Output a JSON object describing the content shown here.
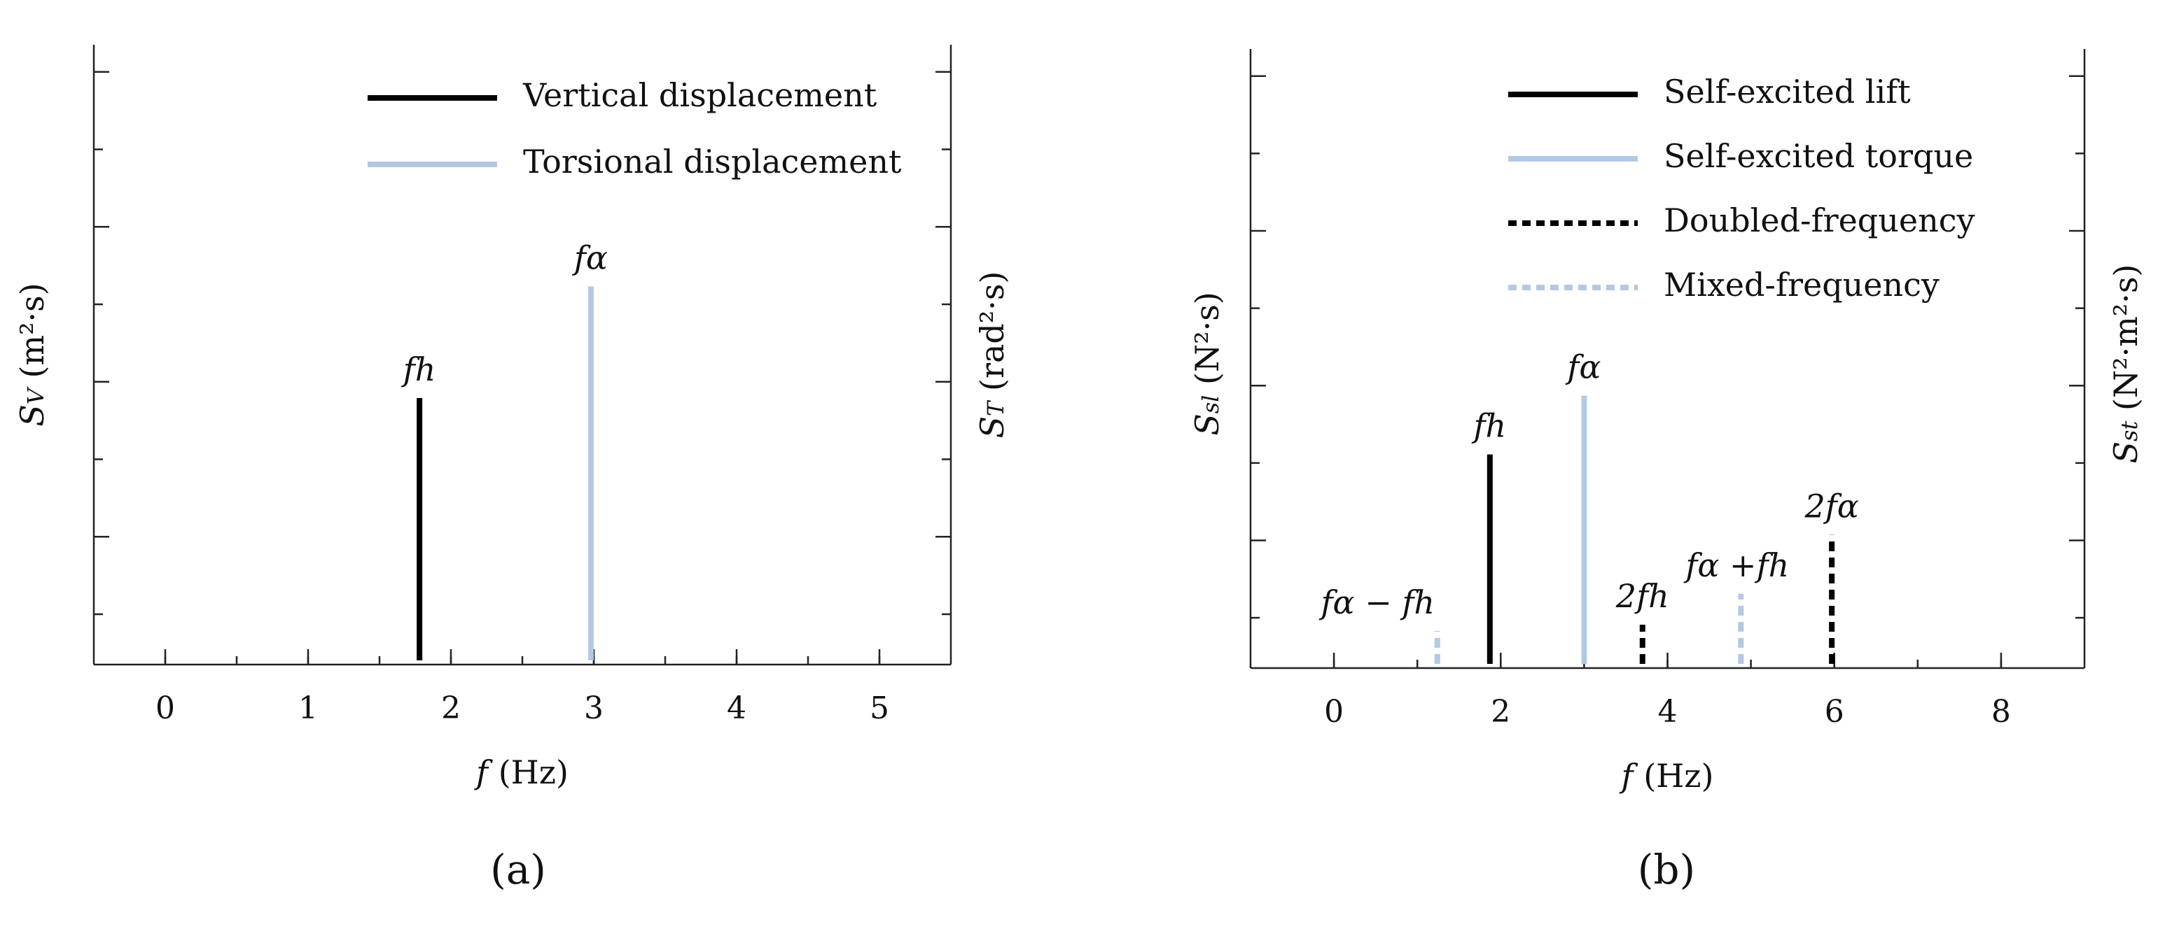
{
  "colors": {
    "black": "#000000",
    "light_blue": "#b3c9e3"
  },
  "chart_data": [
    {
      "panel": "(a)",
      "panel_label": "(a)",
      "type": "bar",
      "xlabel": "f (Hz)",
      "ylabel_left": "SV (m²·s)",
      "ylabel_right": "ST (rad²·s)",
      "xlim": [
        -0.5,
        5.5
      ],
      "xticks": [
        0,
        1,
        2,
        3,
        4,
        5
      ],
      "ylim": [
        0,
        1
      ],
      "legend_position": "top-right",
      "legend": [
        {
          "label": "Vertical displacement",
          "color": "#000000",
          "style": "solid"
        },
        {
          "label": "Torsional displacement",
          "color": "#b3c9e3",
          "style": "solid"
        }
      ],
      "series": [
        {
          "name": "Vertical displacement",
          "style": "solid",
          "color": "#000000",
          "x": [
            1.78
          ],
          "values": [
            0.43
          ],
          "peak_labels": [
            "fh"
          ]
        },
        {
          "name": "Torsional displacement",
          "style": "solid",
          "color": "#b3c9e3",
          "x": [
            2.98
          ],
          "values": [
            0.61
          ],
          "peak_labels": [
            "fα"
          ]
        }
      ]
    },
    {
      "panel": "(b)",
      "panel_label": "(b)",
      "type": "bar",
      "xlabel": "f (Hz)",
      "ylabel_left": "Ssl (N²·s)",
      "ylabel_right": "Sst (N²·m²·s)",
      "xlim": [
        -1,
        9
      ],
      "xticks": [
        0,
        2,
        4,
        6,
        8
      ],
      "ylim": [
        0,
        1
      ],
      "legend_position": "top",
      "legend": [
        {
          "label": "Self-excited lift",
          "color": "#000000",
          "style": "solid"
        },
        {
          "label": "Self-excited torque",
          "color": "#b3c9e3",
          "style": "solid"
        },
        {
          "label": "Doubled-frequency",
          "color": "#000000",
          "style": "dashed"
        },
        {
          "label": "Mixed-frequency",
          "color": "#b3c9e3",
          "style": "dashed"
        }
      ],
      "series": [
        {
          "name": "Self-excited lift",
          "style": "solid",
          "color": "#000000",
          "x": [
            1.87
          ],
          "values": [
            0.345
          ],
          "peak_labels": [
            "fh"
          ]
        },
        {
          "name": "Self-excited torque",
          "style": "solid",
          "color": "#b3c9e3",
          "x": [
            3.0
          ],
          "values": [
            0.44
          ],
          "peak_labels": [
            "fα"
          ]
        },
        {
          "name": "Doubled-frequency",
          "style": "dashed",
          "color": "#000000",
          "x": [
            3.7,
            5.97
          ],
          "values": [
            0.07,
            0.215
          ],
          "peak_labels": [
            "2fh",
            "2fα"
          ]
        },
        {
          "name": "Mixed-frequency",
          "style": "dashed",
          "color": "#b3c9e3",
          "x": [
            1.24,
            4.88
          ],
          "values": [
            0.06,
            0.12
          ],
          "peak_labels": [
            "fα − fh",
            "fα +fh"
          ]
        }
      ]
    }
  ]
}
